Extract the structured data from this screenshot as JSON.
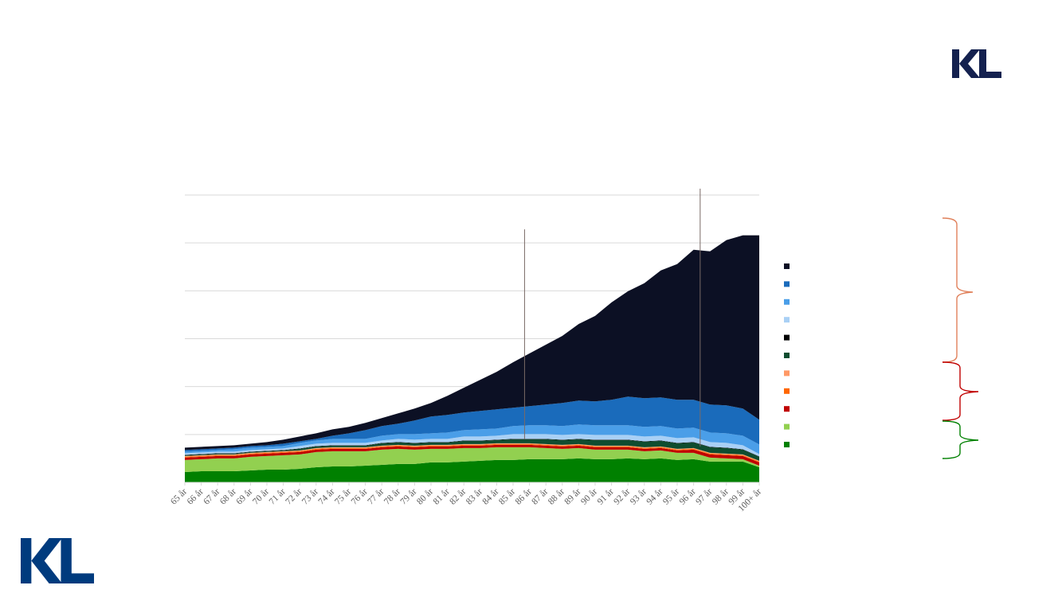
{
  "chart_data": {
    "type": "area",
    "stacked": true,
    "title": "",
    "xlabel": "",
    "ylabel": "",
    "ylim": [
      0,
      3600
    ],
    "ytick_step": 600,
    "grid": true,
    "legend_position": "right",
    "categories": [
      "65 år",
      "66 år",
      "67 år",
      "68 år",
      "69 år",
      "70 år",
      "71 år",
      "72 år",
      "73 år",
      "74 år",
      "75 år",
      "76 år",
      "77 år",
      "78 år",
      "79 år",
      "80 år",
      "81 år",
      "82 år",
      "83 år",
      "84 år",
      "85 år",
      "86 år",
      "87 år",
      "88 år",
      "89 år",
      "90 år",
      "91 år",
      "92 år",
      "93 år",
      "94 år",
      "95 år",
      "96 år",
      "97 år",
      "98 år",
      "99 år",
      "100+ år"
    ],
    "series": [
      {
        "color": "#008000",
        "values": [
          130,
          140,
          140,
          140,
          150,
          160,
          160,
          170,
          190,
          200,
          200,
          210,
          220,
          230,
          230,
          250,
          250,
          260,
          270,
          280,
          280,
          290,
          290,
          290,
          300,
          290,
          290,
          300,
          290,
          300,
          280,
          290,
          260,
          260,
          260,
          190
        ]
      },
      {
        "color": "#92d050",
        "values": [
          150,
          150,
          160,
          160,
          170,
          170,
          180,
          180,
          190,
          190,
          190,
          180,
          190,
          190,
          180,
          170,
          170,
          170,
          160,
          160,
          160,
          150,
          140,
          130,
          130,
          120,
          120,
          110,
          100,
          100,
          90,
          80,
          50,
          40,
          30,
          20
        ]
      },
      {
        "color": "#c00000",
        "values": [
          30,
          30,
          30,
          30,
          30,
          30,
          30,
          30,
          30,
          30,
          30,
          30,
          30,
          30,
          30,
          30,
          30,
          30,
          30,
          30,
          30,
          30,
          30,
          30,
          30,
          30,
          30,
          30,
          30,
          30,
          30,
          40,
          40,
          40,
          40,
          40
        ]
      },
      {
        "color": "#ff6600",
        "values": [
          10,
          10,
          10,
          10,
          10,
          10,
          10,
          10,
          10,
          10,
          10,
          10,
          10,
          10,
          10,
          10,
          10,
          10,
          10,
          10,
          10,
          10,
          10,
          10,
          10,
          10,
          10,
          10,
          10,
          10,
          10,
          10,
          10,
          10,
          10,
          10
        ]
      },
      {
        "color": "#ff9966",
        "values": [
          10,
          10,
          10,
          10,
          10,
          10,
          10,
          10,
          10,
          10,
          10,
          10,
          10,
          10,
          10,
          10,
          10,
          10,
          10,
          10,
          10,
          10,
          10,
          10,
          10,
          10,
          10,
          10,
          10,
          10,
          10,
          10,
          10,
          10,
          10,
          10
        ]
      },
      {
        "color": "#0f4d30",
        "values": [
          10,
          10,
          10,
          10,
          10,
          10,
          10,
          20,
          20,
          20,
          20,
          20,
          30,
          30,
          30,
          30,
          30,
          40,
          40,
          40,
          50,
          50,
          60,
          60,
          60,
          70,
          70,
          70,
          70,
          70,
          70,
          70,
          70,
          70,
          60,
          50
        ]
      },
      {
        "color": "#000000",
        "values": [
          5,
          5,
          5,
          5,
          5,
          5,
          5,
          5,
          5,
          5,
          5,
          5,
          5,
          5,
          5,
          5,
          5,
          5,
          5,
          5,
          5,
          5,
          5,
          5,
          5,
          5,
          5,
          5,
          5,
          5,
          5,
          5,
          5,
          5,
          5,
          5
        ]
      },
      {
        "color": "#a9d0f5",
        "values": [
          20,
          20,
          20,
          20,
          20,
          20,
          20,
          30,
          30,
          30,
          30,
          30,
          30,
          40,
          40,
          40,
          40,
          50,
          50,
          50,
          60,
          60,
          60,
          60,
          60,
          60,
          60,
          60,
          60,
          60,
          60,
          60,
          60,
          60,
          50,
          30
        ]
      },
      {
        "color": "#4a9ee8",
        "values": [
          20,
          20,
          20,
          30,
          30,
          30,
          30,
          40,
          40,
          50,
          50,
          50,
          60,
          60,
          70,
          70,
          80,
          80,
          90,
          90,
          100,
          110,
          110,
          110,
          120,
          120,
          120,
          120,
          120,
          120,
          120,
          120,
          120,
          120,
          120,
          120
        ]
      },
      {
        "color": "#1a6bbb",
        "values": [
          20,
          20,
          20,
          20,
          20,
          20,
          30,
          20,
          20,
          40,
          70,
          110,
          120,
          130,
          170,
          210,
          220,
          220,
          230,
          240,
          230,
          240,
          260,
          290,
          300,
          300,
          320,
          360,
          360,
          360,
          360,
          350,
          350,
          350,
          340,
          310
        ]
      },
      {
        "color": "#0c1024",
        "values": [
          30,
          30,
          30,
          30,
          30,
          40,
          50,
          60,
          70,
          80,
          80,
          90,
          100,
          130,
          150,
          170,
          240,
          310,
          390,
          470,
          570,
          660,
          750,
          840,
          960,
          1070,
          1220,
          1320,
          1440,
          1590,
          1700,
          1880,
          1920,
          2070,
          2170,
          2310
        ]
      }
    ],
    "legend_order_top_to_bottom": [
      10,
      9,
      8,
      7,
      6,
      5,
      4,
      3,
      2,
      1,
      0
    ],
    "annotations": [
      {
        "type": "vline",
        "x": 85.7,
        "y0": 540,
        "y1": 3170,
        "color": "#7a6a66"
      },
      {
        "type": "vline",
        "x": 96.4,
        "y0": 450,
        "y1": 3680,
        "color": "#7a6a66"
      }
    ]
  },
  "colors": {
    "logo_top": "#14214f",
    "logo_bottom": "#003b7e",
    "grid": "#d9d9d9",
    "tick_label": "#595959"
  }
}
